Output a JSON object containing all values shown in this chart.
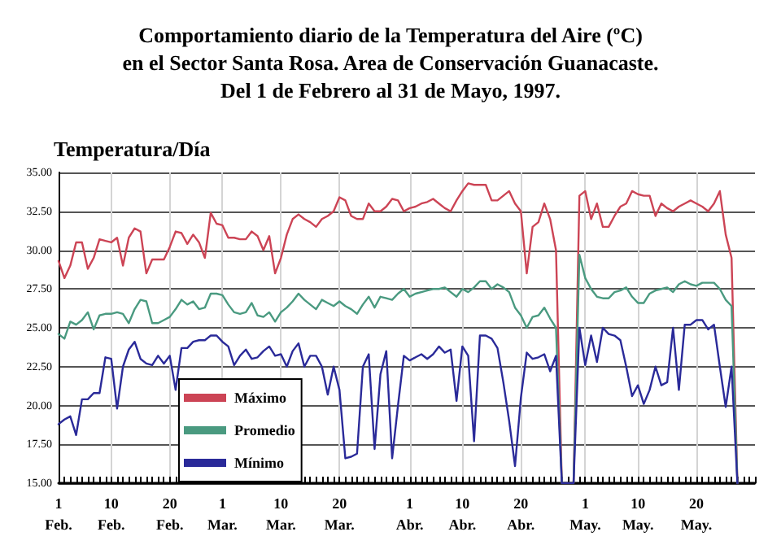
{
  "chart_data": {
    "type": "line",
    "title": "Comportamiento diario de la Temperatura del Aire (ºC)\nen el Sector Santa Rosa. Area de Conservación Guanacaste.\nDel 1 de Febrero al 31 de Mayo, 1997.",
    "ylabel": "Temperatura/Día",
    "categories": [
      "1\nFeb.",
      null,
      null,
      null,
      null,
      null,
      null,
      null,
      null,
      "10\nFeb.",
      null,
      null,
      null,
      null,
      null,
      null,
      null,
      null,
      null,
      "20\nFeb.",
      null,
      null,
      null,
      null,
      null,
      null,
      null,
      null,
      "1\nMar.",
      null,
      null,
      null,
      null,
      null,
      null,
      null,
      null,
      null,
      "10\nMar.",
      null,
      null,
      null,
      null,
      null,
      null,
      null,
      null,
      null,
      "20\nMar.",
      null,
      null,
      null,
      null,
      null,
      null,
      null,
      null,
      null,
      null,
      null,
      "1\nAbr.",
      null,
      null,
      null,
      null,
      null,
      null,
      null,
      null,
      "10\nAbr.",
      null,
      null,
      null,
      null,
      null,
      null,
      null,
      null,
      null,
      "20\nAbr.",
      null,
      null,
      null,
      null,
      null,
      null,
      null,
      null,
      null,
      null,
      "1\nMay.",
      null,
      null,
      null,
      null,
      null,
      null,
      null,
      null,
      "10\nMay.",
      null,
      null,
      null,
      null,
      null,
      null,
      null,
      null,
      null,
      "20\nMay.",
      null,
      null,
      null,
      null,
      null,
      null,
      null,
      null,
      null,
      null
    ],
    "series": [
      {
        "name": "Máximo",
        "color": "#cc4455",
        "values": [
          29.3,
          28.2,
          29,
          30.5,
          30.5,
          28.8,
          29.5,
          30.7,
          30.6,
          30.5,
          30.8,
          29,
          30.8,
          31.4,
          31.2,
          28.5,
          29.4,
          29.4,
          29.4,
          30.2,
          31.2,
          31.1,
          30.4,
          31,
          30.5,
          29.5,
          32.4,
          31.7,
          31.6,
          30.8,
          30.8,
          30.7,
          30.7,
          31.2,
          30.9,
          30,
          30.9,
          28.5,
          29.5,
          31,
          32,
          32.3,
          32,
          31.8,
          31.5,
          32,
          32.2,
          32.5,
          33.4,
          33.2,
          32.2,
          32,
          32,
          33,
          32.5,
          32.5,
          32.8,
          33.3,
          33.2,
          32.5,
          32.7,
          32.8,
          33,
          33.1,
          33.3,
          33,
          32.7,
          32.5,
          33.2,
          33.8,
          34.3,
          34.2,
          34.2,
          34.2,
          33.2,
          33.2,
          33.5,
          33.8,
          33,
          32.5,
          28.5,
          31.5,
          31.8,
          33,
          32,
          30,
          15,
          15,
          15,
          33.5,
          33.8,
          32,
          33,
          31.5,
          31.5,
          32.2,
          32.8,
          33,
          33.8,
          33.6,
          33.5,
          33.5,
          32.2,
          33,
          32.7,
          32.5,
          32.8,
          33,
          33.2,
          33,
          32.8,
          32.5,
          33,
          33.8,
          31,
          29.5,
          15,
          null,
          null,
          null
        ]
      },
      {
        "name": "Promedio",
        "color": "#4a9a80",
        "values": [
          24.6,
          24.3,
          25.4,
          25.2,
          25.5,
          26,
          24.9,
          25.8,
          25.9,
          25.9,
          26,
          25.9,
          25.3,
          26.2,
          26.8,
          26.7,
          25.3,
          25.3,
          25.5,
          25.7,
          26.2,
          26.8,
          26.5,
          26.7,
          26.2,
          26.3,
          27.2,
          27.2,
          27.1,
          26.5,
          26,
          25.9,
          26,
          26.6,
          25.8,
          25.7,
          26,
          25.4,
          26,
          26.3,
          26.7,
          27.2,
          26.8,
          26.5,
          26.2,
          26.8,
          26.6,
          26.4,
          26.7,
          26.4,
          26.2,
          25.9,
          26.5,
          27,
          26.3,
          27,
          26.9,
          26.8,
          27.2,
          27.5,
          27,
          27.2,
          27.3,
          27.4,
          27.5,
          27.5,
          27.6,
          27.3,
          27,
          27.5,
          27.3,
          27.6,
          28,
          28,
          27.5,
          27.8,
          27.6,
          27.3,
          26.3,
          25.8,
          25,
          25.7,
          25.8,
          26.3,
          25.6,
          25,
          15,
          15,
          15,
          29.7,
          28.2,
          27.5,
          27,
          26.9,
          26.9,
          27.3,
          27.4,
          27.6,
          27,
          26.6,
          26.6,
          27.2,
          27.4,
          27.5,
          27.6,
          27.3,
          27.8,
          28,
          27.8,
          27.7,
          27.9,
          27.9,
          27.9,
          27.5,
          26.8,
          26.4,
          15,
          null,
          null,
          null
        ]
      },
      {
        "name": "Mínimo",
        "color": "#2a2a99",
        "values": [
          18.8,
          19.1,
          19.3,
          18.1,
          20.4,
          20.4,
          20.8,
          20.8,
          23.1,
          23,
          19.8,
          22.5,
          23.6,
          24.1,
          23,
          22.7,
          22.6,
          23.2,
          22.7,
          23.2,
          21,
          23.7,
          23.7,
          24.1,
          24.2,
          24.2,
          24.5,
          24.5,
          24.1,
          23.8,
          22.6,
          23.2,
          23.6,
          23,
          23.1,
          23.5,
          23.8,
          23.2,
          23.3,
          22.5,
          23.5,
          24,
          22.5,
          23.2,
          23.2,
          22.5,
          20.7,
          22.5,
          21,
          16.6,
          16.7,
          16.9,
          22.5,
          23.3,
          17.2,
          22,
          23.5,
          16.6,
          20,
          23.2,
          22.9,
          23.1,
          23.3,
          23,
          23.3,
          23.8,
          23.4,
          23.6,
          20.3,
          23.8,
          23.2,
          17.7,
          24.5,
          24.5,
          24.3,
          23.7,
          21.5,
          19,
          16.1,
          20.5,
          23.4,
          23,
          23.1,
          23.3,
          22.2,
          23.2,
          15,
          15,
          15,
          25,
          22.6,
          24.5,
          22.8,
          25,
          24.6,
          24.5,
          24.2,
          22.5,
          20.6,
          21.3,
          20.1,
          21,
          22.5,
          21.3,
          21.5,
          25,
          21,
          25.2,
          25.2,
          25.5,
          25.5,
          24.9,
          25.2,
          22.5,
          19.9,
          22.5,
          15,
          null,
          null,
          null
        ]
      }
    ],
    "ylim": [
      15,
      35
    ],
    "yticks": [
      {
        "value": 15,
        "label": "15.00"
      },
      {
        "value": 17.5,
        "label": "17.50"
      },
      {
        "value": 20,
        "label": "20.00"
      },
      {
        "value": 22.5,
        "label": "22.50"
      },
      {
        "value": 25,
        "label": "25.00"
      },
      {
        "value": 27.5,
        "label": "27.50"
      },
      {
        "value": 30,
        "label": "30.00"
      },
      {
        "value": 32.5,
        "label": "32.50"
      },
      {
        "value": 35,
        "label": "35.00"
      }
    ],
    "grid": true,
    "legend": "bottom left",
    "marker": "none",
    "line_style": "solid"
  }
}
